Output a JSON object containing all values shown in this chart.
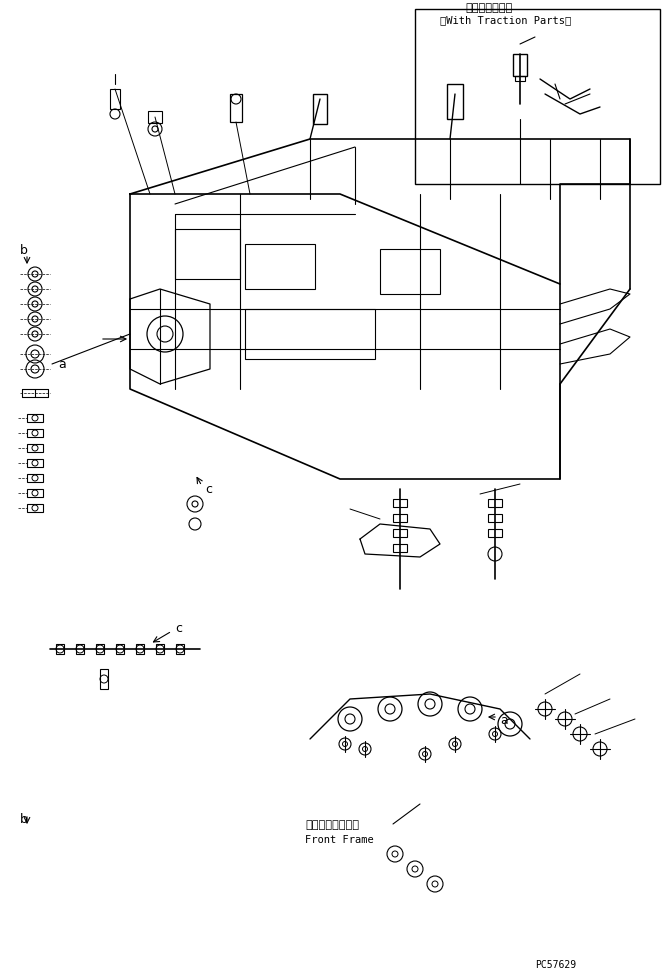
{
  "bg_color": "#ffffff",
  "line_color": "#000000",
  "text_color": "#000000",
  "title_jp": "（牽引具付き）",
  "title_en": "（With Traction Parts）",
  "front_frame_jp": "フロントフレーム",
  "front_frame_en": "Front Frame",
  "part_code": "PC57629",
  "label_a": "a",
  "label_b": "b",
  "label_c": "c",
  "fig_width": 6.7,
  "fig_height": 9.79,
  "dpi": 100
}
